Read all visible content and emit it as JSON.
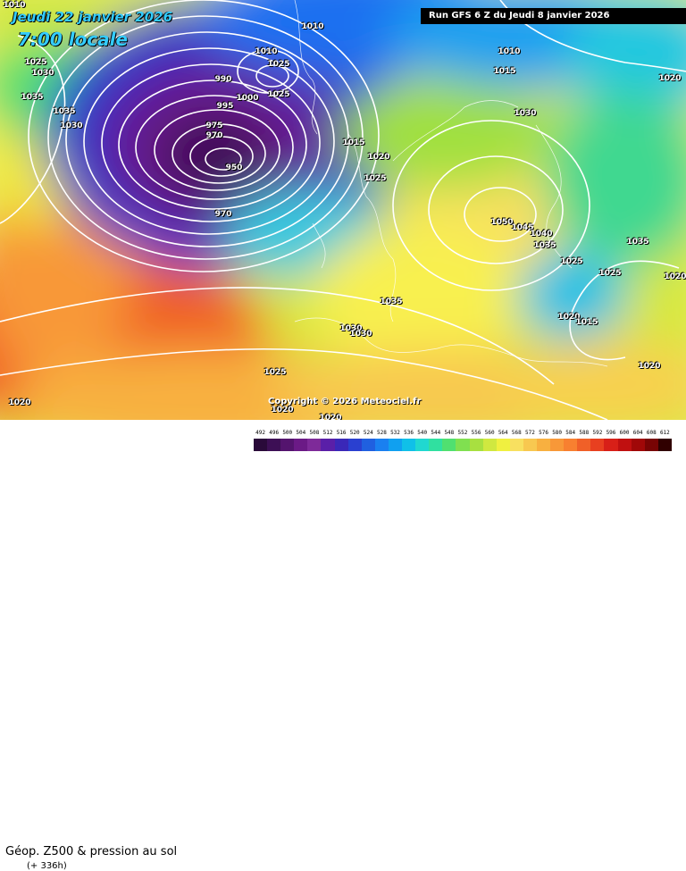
{
  "header": {
    "valid_date": "Jeudi 22 janvier 2026",
    "valid_time": "7:00 locale",
    "run_info": "Run GFS 6 Z du Jeudi 8 janvier 2026"
  },
  "copyright": "Copyright © 2026 Meteociel.fr",
  "footer": {
    "product_title": "Géop. Z500 & pression au sol",
    "forecast_hour": "(+ 336h)"
  },
  "isobar_labels": [
    "1010",
    "1010",
    "1010",
    "1010",
    "1025",
    "1030",
    "1035",
    "1035",
    "1030",
    "990",
    "1000",
    "995",
    "975",
    "970",
    "950",
    "970",
    "1025",
    "1015",
    "1025",
    "1020",
    "1025",
    "1015",
    "1030",
    "1050",
    "1045",
    "1040",
    "1035",
    "1025",
    "1035",
    "1025",
    "1020",
    "1020",
    "1035",
    "1030",
    "1030",
    "1015",
    "1020",
    "1025",
    "1020",
    "1020",
    "1020",
    "1020"
  ],
  "scale": {
    "ticks": [
      "492",
      "496",
      "500",
      "504",
      "508",
      "512",
      "516",
      "520",
      "524",
      "528",
      "532",
      "536",
      "540",
      "544",
      "548",
      "552",
      "556",
      "560",
      "564",
      "568",
      "572",
      "576",
      "580",
      "584",
      "588",
      "592",
      "596",
      "600",
      "604",
      "608",
      "612"
    ],
    "colors": [
      "#2a0a3a",
      "#3d0f55",
      "#54146e",
      "#6b1a86",
      "#7e2a99",
      "#5a1fa8",
      "#3a28b8",
      "#2a40d0",
      "#2060e0",
      "#1a80f0",
      "#10a0f0",
      "#10c0e8",
      "#20d8d0",
      "#30e0a0",
      "#50e070",
      "#80e050",
      "#a8e040",
      "#d0e840",
      "#f0f040",
      "#f8e060",
      "#f8c850",
      "#f8b040",
      "#f89838",
      "#f88030",
      "#f06028",
      "#e84020",
      "#d82018",
      "#c01010",
      "#a00808",
      "#780404",
      "#300000"
    ]
  },
  "colors": {
    "date_text": "#33ccff",
    "isobar": "#ffffff",
    "run_banner": "#000000"
  }
}
